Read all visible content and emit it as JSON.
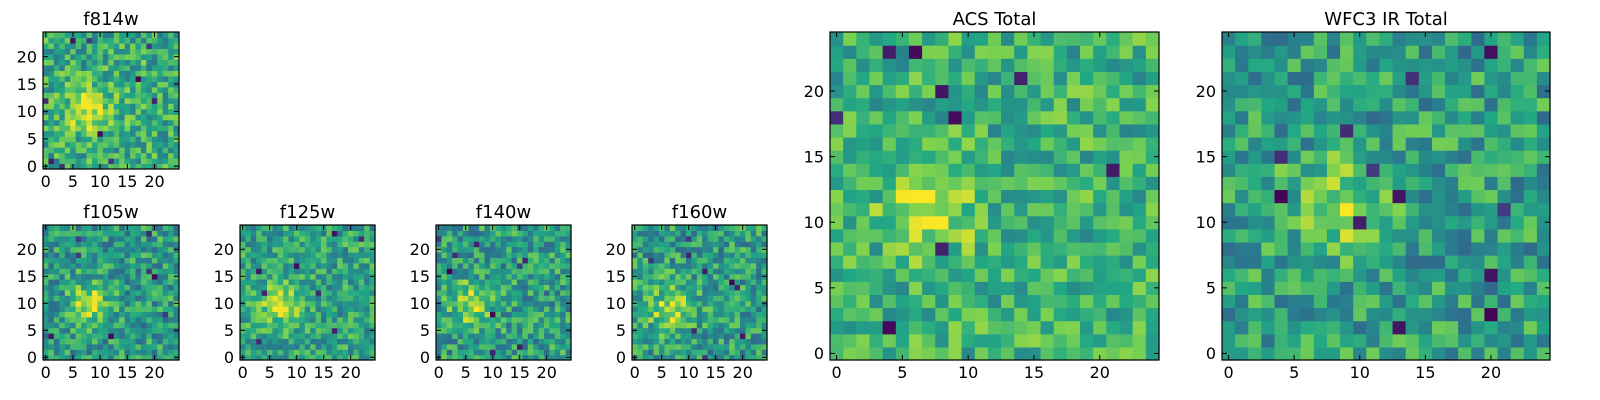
{
  "figure": {
    "background": "#ffffff"
  },
  "colormap": [
    "#440154",
    "#414487",
    "#2a788e",
    "#22a884",
    "#7ad151",
    "#fde725"
  ],
  "chart_data": [
    {
      "type": "heatmap",
      "title": "f814w",
      "grid_size": 25,
      "xlim": [
        0,
        24
      ],
      "ylim": [
        0,
        24
      ],
      "xticks": [
        0,
        5,
        10,
        15,
        20
      ],
      "yticks": [
        0,
        5,
        10,
        15,
        20
      ],
      "center": [
        8,
        10
      ],
      "blob_sigma": 3.0,
      "blob_amp": 0.35,
      "base": 0.62,
      "noise": 0.22,
      "seed": 814,
      "dark_count": 10
    },
    {
      "type": "heatmap",
      "title": "f105w",
      "grid_size": 25,
      "xlim": [
        0,
        24
      ],
      "ylim": [
        0,
        24
      ],
      "xticks": [
        0,
        5,
        10,
        15,
        20
      ],
      "yticks": [
        0,
        5,
        10,
        15,
        20
      ],
      "center": [
        8,
        10
      ],
      "blob_sigma": 2.5,
      "blob_amp": 0.35,
      "base": 0.55,
      "noise": 0.22,
      "seed": 105,
      "dark_count": 8
    },
    {
      "type": "heatmap",
      "title": "f125w",
      "grid_size": 25,
      "xlim": [
        0,
        24
      ],
      "ylim": [
        0,
        24
      ],
      "xticks": [
        0,
        5,
        10,
        15,
        20
      ],
      "yticks": [
        0,
        5,
        10,
        15,
        20
      ],
      "center": [
        7,
        10
      ],
      "blob_sigma": 2.8,
      "blob_amp": 0.35,
      "base": 0.58,
      "noise": 0.2,
      "seed": 125,
      "dark_count": 8
    },
    {
      "type": "heatmap",
      "title": "f140w",
      "grid_size": 25,
      "xlim": [
        0,
        24
      ],
      "ylim": [
        0,
        24
      ],
      "xticks": [
        0,
        5,
        10,
        15,
        20
      ],
      "yticks": [
        0,
        5,
        10,
        15,
        20
      ],
      "center": [
        6,
        10
      ],
      "blob_sigma": 2.8,
      "blob_amp": 0.32,
      "base": 0.56,
      "noise": 0.22,
      "seed": 140,
      "dark_count": 9
    },
    {
      "type": "heatmap",
      "title": "f160w",
      "grid_size": 25,
      "xlim": [
        0,
        24
      ],
      "ylim": [
        0,
        24
      ],
      "xticks": [
        0,
        5,
        10,
        15,
        20
      ],
      "yticks": [
        0,
        5,
        10,
        15,
        20
      ],
      "center": [
        7,
        9
      ],
      "blob_sigma": 3.0,
      "blob_amp": 0.32,
      "base": 0.56,
      "noise": 0.22,
      "seed": 160,
      "dark_count": 9
    },
    {
      "type": "heatmap",
      "title": "ACS Total",
      "grid_size": 25,
      "xlim": [
        0,
        24
      ],
      "ylim": [
        0,
        24
      ],
      "xticks": [
        0,
        5,
        10,
        15,
        20
      ],
      "yticks": [
        0,
        5,
        10,
        15,
        20
      ],
      "center": [
        7,
        11
      ],
      "blob_sigma": 2.2,
      "blob_amp": 0.35,
      "base": 0.64,
      "noise": 0.2,
      "seed": 999,
      "dark_count": 9
    },
    {
      "type": "heatmap",
      "title": "WFC3 IR Total",
      "grid_size": 25,
      "xlim": [
        0,
        24
      ],
      "ylim": [
        0,
        24
      ],
      "xticks": [
        0,
        5,
        10,
        15,
        20
      ],
      "yticks": [
        0,
        5,
        10,
        15,
        20
      ],
      "center": [
        8,
        11
      ],
      "blob_sigma": 2.5,
      "blob_amp": 0.3,
      "base": 0.56,
      "noise": 0.22,
      "seed": 3210,
      "dark_count": 12
    }
  ]
}
